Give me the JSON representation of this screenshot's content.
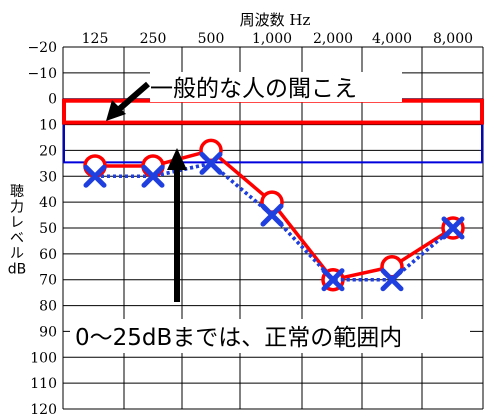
{
  "chart_data": {
    "type": "line",
    "xlabel": "周波数 Hz",
    "ylabel": "聴力レベル dB",
    "ylabel_lines": [
      "聴",
      "力",
      "レ",
      "ベ",
      "ル",
      "dB"
    ],
    "categories": [
      "125",
      "250",
      "500",
      "1,000",
      "2,000",
      "4,000",
      "8,000"
    ],
    "y_ticks": [
      "−20",
      "−10",
      "0",
      "10",
      "20",
      "30",
      "40",
      "50",
      "60",
      "70",
      "80",
      "90",
      "100",
      "110",
      "120"
    ],
    "ylim": [
      -20,
      120
    ],
    "y_inverted": true,
    "grid": true,
    "series": [
      {
        "marker": "circle",
        "color": "#ff0000",
        "line_style": "solid",
        "values": [
          26,
          26,
          20,
          40,
          70,
          65,
          50
        ]
      },
      {
        "marker": "cross",
        "color": "#1f3fdf",
        "line_style": "dotted",
        "values": [
          30,
          30,
          25,
          45,
          70,
          70,
          50
        ]
      }
    ],
    "bands": [
      {
        "color": "#0000dd",
        "from": 0,
        "to": 25
      },
      {
        "color": "#ff0000",
        "from": 0,
        "to": 10
      }
    ],
    "annotations": [
      {
        "text": "一般的な人の聞こえ",
        "arrow_to_value": 10
      },
      {
        "text": "0～25dBまでは、正常の範囲内",
        "arrow_to_value": 25
      }
    ]
  },
  "colors": {
    "red": "#ff0000",
    "blue": "#1f3fdf",
    "band_blue": "#0000dd",
    "grid": "#000000"
  }
}
